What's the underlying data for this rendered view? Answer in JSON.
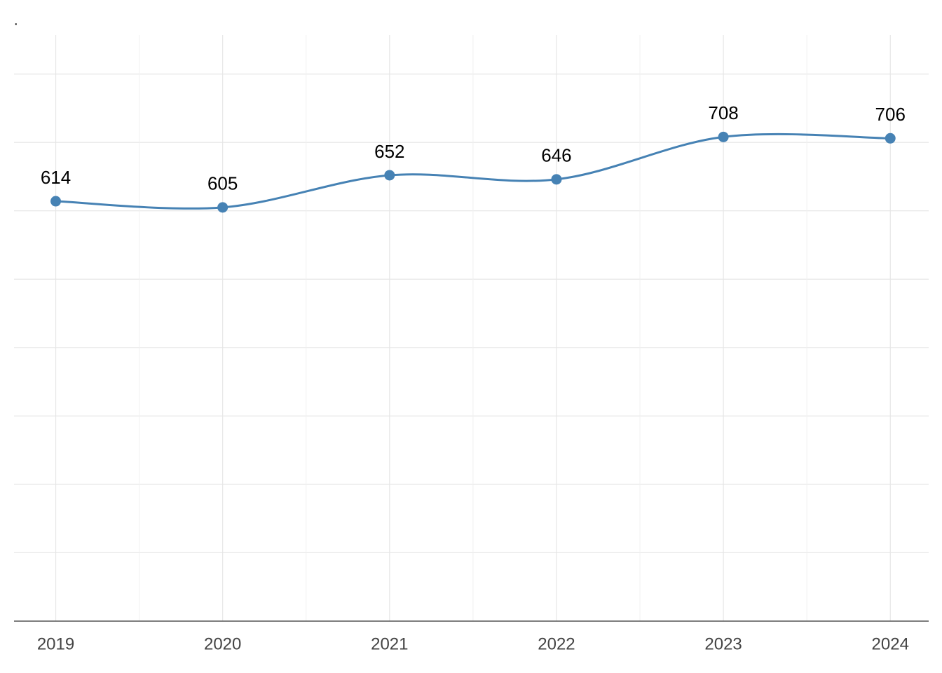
{
  "chart_data": {
    "type": "line",
    "title": ".",
    "x": [
      2019,
      2020,
      2021,
      2022,
      2023,
      2024
    ],
    "xticks": [
      2019,
      2020,
      2021,
      2022,
      2023,
      2024
    ],
    "xlim": [
      2018.75,
      2024.23
    ],
    "series": [
      {
        "color": "#4682b4",
        "values": [
          614,
          605,
          652,
          646,
          708,
          706
        ]
      }
    ],
    "ylim": [
      0,
      857
    ],
    "yticks": [
      0,
      100,
      200,
      300,
      400,
      500,
      600,
      700,
      800
    ],
    "show_ytick_labels": false,
    "grid": true,
    "smooth": true
  }
}
